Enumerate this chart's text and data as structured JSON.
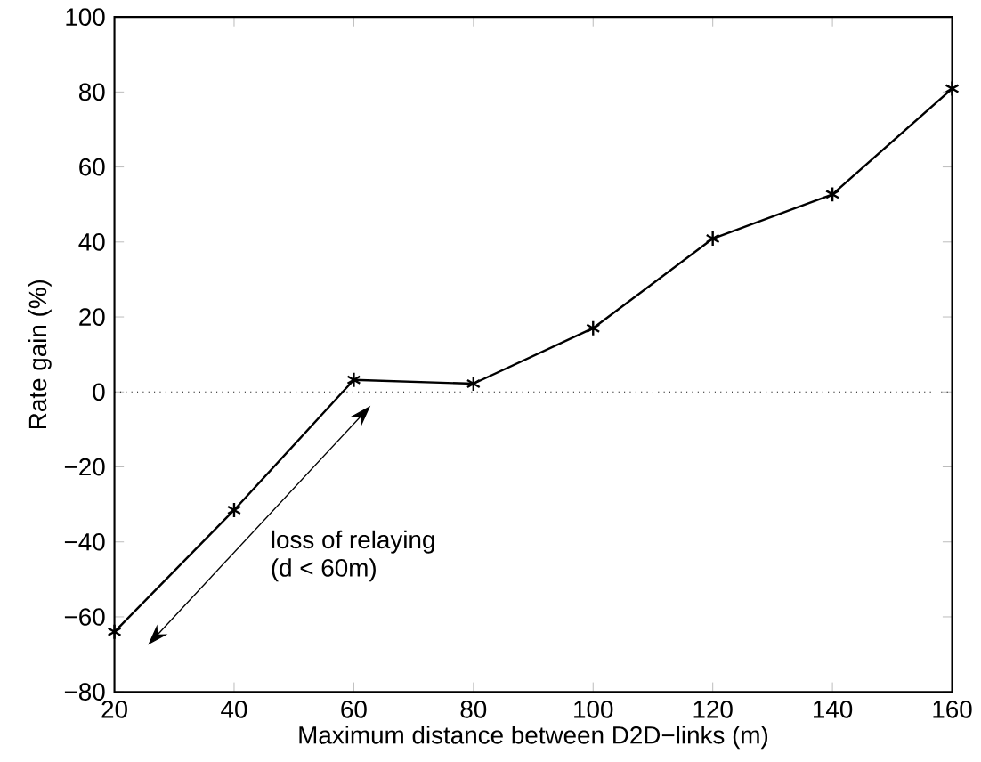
{
  "chart_data": {
    "type": "line",
    "xlabel": "Maximum distance between D2D−links (m)",
    "ylabel": "Rate gain (%)",
    "x": [
      20,
      40,
      60,
      80,
      100,
      120,
      140,
      160
    ],
    "series": [
      {
        "color": "#000000",
        "values": [
          -64,
          -31.5,
          3.2,
          2.2,
          17,
          40.9,
          52.7,
          80.9
        ]
      }
    ],
    "xlim": [
      20,
      160
    ],
    "xticks": [
      20,
      40,
      60,
      80,
      100,
      120,
      140,
      160
    ],
    "ylim": [
      -80,
      100
    ],
    "yticks": [
      {
        "value": -80,
        "label": "−80"
      },
      {
        "value": -60,
        "label": "−60"
      },
      {
        "value": -40,
        "label": "−40"
      },
      {
        "value": -20,
        "label": "−20"
      },
      0,
      20,
      40,
      60,
      80,
      100
    ],
    "ref_lines": [
      {
        "axis": "y",
        "value": 0,
        "color": "#000000",
        "line_style": "dotted"
      }
    ],
    "annotations": [
      "loss of relaying",
      "(d < 60m)"
    ],
    "marker": "cross",
    "line_style": "solid",
    "grid": false
  }
}
